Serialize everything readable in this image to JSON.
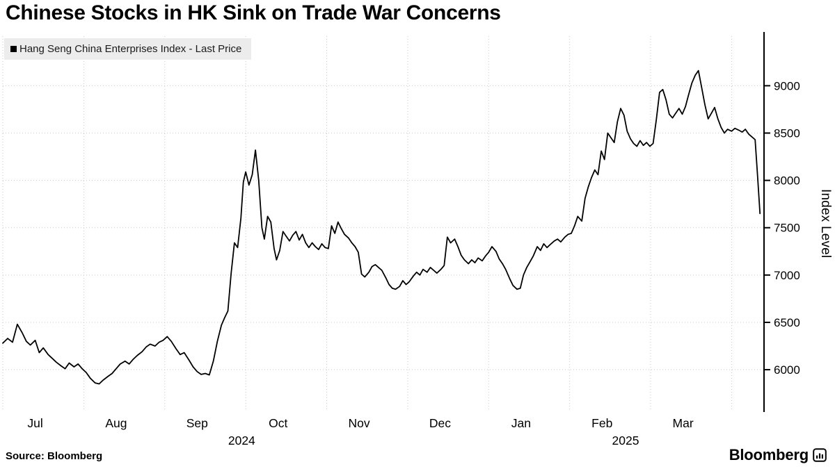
{
  "header": {
    "title": "Chinese Stocks in HK Sink on Trade War Concerns"
  },
  "legend": {
    "label": "Hang Seng China Enterprises Index - Last Price",
    "marker_icon": "black-square"
  },
  "footer": {
    "source": "Source: Bloomberg",
    "brand": "Bloomberg",
    "brand_icon": "bloomberg-chart-mark"
  },
  "chart_data": {
    "type": "line",
    "title": "Chinese Stocks in HK Sink on Trade War Concerns",
    "series_name": "Hang Seng China Enterprises Index - Last Price",
    "ylabel": "Index Level",
    "line_color": "#000000",
    "grid": "dotted",
    "legend_position": "top-left",
    "x_axis": {
      "months": [
        "Jul",
        "Aug",
        "Sep",
        "Oct",
        "Nov",
        "Dec",
        "Jan",
        "Feb",
        "Mar"
      ],
      "years": [
        {
          "label": "2024",
          "position": 2.95
        },
        {
          "label": "2025",
          "position": 7.69
        }
      ]
    },
    "y_axis": {
      "ticks": [
        6000,
        6500,
        7000,
        7500,
        8000,
        8500,
        9000
      ],
      "range": [
        5560,
        9480
      ]
    },
    "x_range_months": [
      0,
      9.4
    ],
    "x_encoding": "months elapsed from start of Jul 2024",
    "points": [
      [
        0.0,
        6280
      ],
      [
        0.06,
        6330
      ],
      [
        0.12,
        6290
      ],
      [
        0.18,
        6480
      ],
      [
        0.24,
        6390
      ],
      [
        0.29,
        6300
      ],
      [
        0.34,
        6260
      ],
      [
        0.4,
        6310
      ],
      [
        0.45,
        6180
      ],
      [
        0.5,
        6230
      ],
      [
        0.56,
        6160
      ],
      [
        0.61,
        6120
      ],
      [
        0.66,
        6080
      ],
      [
        0.72,
        6040
      ],
      [
        0.77,
        6010
      ],
      [
        0.82,
        6070
      ],
      [
        0.88,
        6030
      ],
      [
        0.93,
        6060
      ],
      [
        0.98,
        6010
      ],
      [
        1.03,
        5970
      ],
      [
        1.08,
        5910
      ],
      [
        1.14,
        5860
      ],
      [
        1.19,
        5850
      ],
      [
        1.24,
        5890
      ],
      [
        1.3,
        5930
      ],
      [
        1.35,
        5960
      ],
      [
        1.4,
        6010
      ],
      [
        1.45,
        6060
      ],
      [
        1.51,
        6090
      ],
      [
        1.56,
        6060
      ],
      [
        1.61,
        6110
      ],
      [
        1.66,
        6150
      ],
      [
        1.72,
        6190
      ],
      [
        1.77,
        6240
      ],
      [
        1.82,
        6270
      ],
      [
        1.88,
        6250
      ],
      [
        1.93,
        6290
      ],
      [
        1.98,
        6310
      ],
      [
        2.03,
        6350
      ],
      [
        2.08,
        6300
      ],
      [
        2.14,
        6220
      ],
      [
        2.19,
        6160
      ],
      [
        2.24,
        6180
      ],
      [
        2.3,
        6100
      ],
      [
        2.35,
        6030
      ],
      [
        2.4,
        5980
      ],
      [
        2.45,
        5950
      ],
      [
        2.5,
        5960
      ],
      [
        2.55,
        5945
      ],
      [
        2.6,
        6090
      ],
      [
        2.65,
        6300
      ],
      [
        2.7,
        6470
      ],
      [
        2.74,
        6550
      ],
      [
        2.78,
        6620
      ],
      [
        2.82,
        7020
      ],
      [
        2.86,
        7340
      ],
      [
        2.9,
        7290
      ],
      [
        2.94,
        7600
      ],
      [
        2.97,
        7980
      ],
      [
        3.0,
        8090
      ],
      [
        3.04,
        7950
      ],
      [
        3.08,
        8060
      ],
      [
        3.12,
        8320
      ],
      [
        3.16,
        8000
      ],
      [
        3.2,
        7500
      ],
      [
        3.23,
        7380
      ],
      [
        3.27,
        7620
      ],
      [
        3.31,
        7560
      ],
      [
        3.35,
        7280
      ],
      [
        3.38,
        7160
      ],
      [
        3.42,
        7260
      ],
      [
        3.46,
        7460
      ],
      [
        3.5,
        7410
      ],
      [
        3.54,
        7360
      ],
      [
        3.58,
        7420
      ],
      [
        3.62,
        7460
      ],
      [
        3.66,
        7370
      ],
      [
        3.7,
        7430
      ],
      [
        3.74,
        7340
      ],
      [
        3.78,
        7290
      ],
      [
        3.82,
        7340
      ],
      [
        3.86,
        7300
      ],
      [
        3.9,
        7270
      ],
      [
        3.94,
        7330
      ],
      [
        3.98,
        7290
      ],
      [
        4.02,
        7280
      ],
      [
        4.06,
        7520
      ],
      [
        4.1,
        7440
      ],
      [
        4.14,
        7560
      ],
      [
        4.18,
        7490
      ],
      [
        4.22,
        7430
      ],
      [
        4.27,
        7390
      ],
      [
        4.31,
        7340
      ],
      [
        4.35,
        7300
      ],
      [
        4.39,
        7240
      ],
      [
        4.43,
        7010
      ],
      [
        4.47,
        6980
      ],
      [
        4.52,
        7030
      ],
      [
        4.56,
        7090
      ],
      [
        4.6,
        7110
      ],
      [
        4.64,
        7080
      ],
      [
        4.68,
        7050
      ],
      [
        4.73,
        6970
      ],
      [
        4.77,
        6900
      ],
      [
        4.81,
        6860
      ],
      [
        4.85,
        6850
      ],
      [
        4.9,
        6880
      ],
      [
        4.94,
        6940
      ],
      [
        4.98,
        6900
      ],
      [
        5.02,
        6930
      ],
      [
        5.07,
        6990
      ],
      [
        5.11,
        7030
      ],
      [
        5.15,
        7000
      ],
      [
        5.19,
        7060
      ],
      [
        5.24,
        7030
      ],
      [
        5.28,
        7080
      ],
      [
        5.32,
        7050
      ],
      [
        5.36,
        7020
      ],
      [
        5.41,
        7060
      ],
      [
        5.45,
        7100
      ],
      [
        5.49,
        7400
      ],
      [
        5.53,
        7340
      ],
      [
        5.58,
        7380
      ],
      [
        5.62,
        7300
      ],
      [
        5.66,
        7210
      ],
      [
        5.7,
        7160
      ],
      [
        5.75,
        7120
      ],
      [
        5.79,
        7160
      ],
      [
        5.83,
        7130
      ],
      [
        5.87,
        7180
      ],
      [
        5.92,
        7150
      ],
      [
        5.96,
        7200
      ],
      [
        6.0,
        7240
      ],
      [
        6.04,
        7300
      ],
      [
        6.09,
        7250
      ],
      [
        6.13,
        7170
      ],
      [
        6.17,
        7120
      ],
      [
        6.21,
        7060
      ],
      [
        6.26,
        6960
      ],
      [
        6.3,
        6890
      ],
      [
        6.35,
        6850
      ],
      [
        6.39,
        6860
      ],
      [
        6.43,
        7000
      ],
      [
        6.47,
        7080
      ],
      [
        6.51,
        7140
      ],
      [
        6.55,
        7200
      ],
      [
        6.6,
        7300
      ],
      [
        6.64,
        7260
      ],
      [
        6.68,
        7330
      ],
      [
        6.72,
        7290
      ],
      [
        6.77,
        7330
      ],
      [
        6.81,
        7360
      ],
      [
        6.85,
        7380
      ],
      [
        6.89,
        7350
      ],
      [
        6.94,
        7400
      ],
      [
        6.98,
        7430
      ],
      [
        7.02,
        7440
      ],
      [
        7.06,
        7520
      ],
      [
        7.1,
        7620
      ],
      [
        7.15,
        7570
      ],
      [
        7.19,
        7810
      ],
      [
        7.23,
        7930
      ],
      [
        7.27,
        8030
      ],
      [
        7.31,
        8110
      ],
      [
        7.35,
        8060
      ],
      [
        7.39,
        8310
      ],
      [
        7.43,
        8220
      ],
      [
        7.47,
        8500
      ],
      [
        7.51,
        8450
      ],
      [
        7.55,
        8400
      ],
      [
        7.59,
        8620
      ],
      [
        7.63,
        8760
      ],
      [
        7.67,
        8690
      ],
      [
        7.71,
        8520
      ],
      [
        7.75,
        8440
      ],
      [
        7.79,
        8390
      ],
      [
        7.83,
        8360
      ],
      [
        7.87,
        8420
      ],
      [
        7.91,
        8370
      ],
      [
        7.95,
        8400
      ],
      [
        7.99,
        8360
      ],
      [
        8.03,
        8390
      ],
      [
        8.07,
        8640
      ],
      [
        8.11,
        8930
      ],
      [
        8.15,
        8960
      ],
      [
        8.19,
        8850
      ],
      [
        8.23,
        8700
      ],
      [
        8.27,
        8660
      ],
      [
        8.31,
        8710
      ],
      [
        8.35,
        8760
      ],
      [
        8.39,
        8700
      ],
      [
        8.43,
        8780
      ],
      [
        8.47,
        8910
      ],
      [
        8.51,
        9030
      ],
      [
        8.55,
        9110
      ],
      [
        8.59,
        9160
      ],
      [
        8.63,
        8980
      ],
      [
        8.67,
        8800
      ],
      [
        8.71,
        8650
      ],
      [
        8.75,
        8710
      ],
      [
        8.79,
        8770
      ],
      [
        8.83,
        8650
      ],
      [
        8.87,
        8560
      ],
      [
        8.91,
        8500
      ],
      [
        8.95,
        8540
      ],
      [
        9.0,
        8520
      ],
      [
        9.04,
        8550
      ],
      [
        9.09,
        8530
      ],
      [
        9.13,
        8510
      ],
      [
        9.17,
        8540
      ],
      [
        9.21,
        8490
      ],
      [
        9.25,
        8460
      ],
      [
        9.29,
        8430
      ],
      [
        9.32,
        8050
      ],
      [
        9.35,
        7650
      ]
    ]
  }
}
